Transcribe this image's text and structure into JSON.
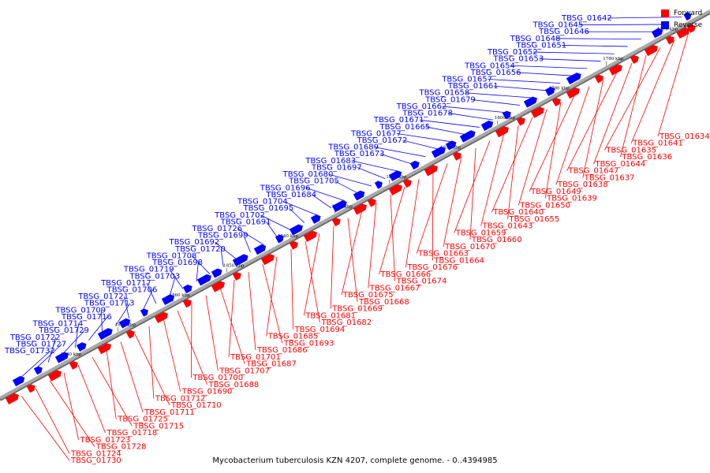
{
  "caption": "Mycobacterium tuberculosis KZN 4207, complete genome. - 0..4394985",
  "colors": {
    "forward": "#ff0000",
    "reverse": "#0000ff",
    "backbone": "#a9a9a9"
  },
  "legend": [
    {
      "label": "Forward",
      "strand": "forward"
    },
    {
      "label": "Reverse",
      "strand": "reverse"
    }
  ],
  "ticks": [
    "1770 kbp",
    "1780 kbp",
    "1790 kbp",
    "1800 kbp",
    "1810 kbp",
    "1820 kbp",
    "1830 kbp",
    "1840 kbp",
    "1850 kbp",
    "1860 kbp",
    "1870 kbp",
    "1880 kbp"
  ],
  "reverse_labels": [
    "TBSG_01642",
    "TBSG_01645",
    "TBSG_01646",
    "TBSG_01648",
    "TBSG_01651",
    "TBSG_01652",
    "TBSG_01653",
    "TBSG_01654",
    "TBSG_01656",
    "TBSG_01657",
    "TBSG_01661",
    "TBSG_01658",
    "TBSG_01679",
    "TBSG_01662",
    "TBSG_01678",
    "TBSG_01671",
    "TBSG_01665",
    "TBSG_01677",
    "TBSG_01672",
    "TBSG_01689",
    "TBSG_01673",
    "TBSG_01683",
    "TBSG_01697",
    "TBSG_01680",
    "TBSG_01705",
    "TBSG_01696",
    "TBSG_01684",
    "TBSG_01704",
    "TBSG_01695",
    "TBSG_01702",
    "TBSG_01691",
    "TBSG_01726",
    "TBSG_01699",
    "TBSG_01692",
    "TBSG_01720",
    "TBSG_01708",
    "TBSG_01698",
    "TBSG_01719",
    "TBSG_01703",
    "TBSG_01717",
    "TBSG_01706",
    "TBSG_01721",
    "TBSG_01713",
    "TBSG_01709",
    "TBSG_01716",
    "TBSG_01714",
    "TBSG_01729",
    "TBSG_01722",
    "TBSG_01727",
    "TBSG_01732"
  ],
  "forward_labels": [
    "TBSG_01634",
    "TBSG_01641",
    "TBSG_01635",
    "TBSG_01636",
    "TBSG_01644",
    "TBSG_01647",
    "TBSG_01637",
    "TBSG_01638",
    "TBSG_01649",
    "TBSG_01639",
    "TBSG_01650",
    "TBSG_01640",
    "TBSG_01655",
    "TBSG_01643",
    "TBSG_01659",
    "TBSG_01660",
    "TBSG_01670",
    "TBSG_01663",
    "TBSG_01664",
    "TBSG_01676",
    "TBSG_01666",
    "TBSG_01674",
    "TBSG_01667",
    "TBSG_01675",
    "TBSG_01668",
    "TBSG_01669",
    "TBSG_01681",
    "TBSG_01682",
    "TBSG_01694",
    "TBSG_01685",
    "TBSG_01693",
    "TBSG_01686",
    "TBSG_01701",
    "TBSG_01687",
    "TBSG_01707",
    "TBSG_01700",
    "TBSG_01688",
    "TBSG_01690",
    "TBSG_01712",
    "TBSG_01710",
    "TBSG_01711",
    "TBSG_01725",
    "TBSG_01715",
    "TBSG_01718",
    "TBSG_01723",
    "TBSG_01728",
    "TBSG_01724",
    "TBSG_01730"
  ]
}
